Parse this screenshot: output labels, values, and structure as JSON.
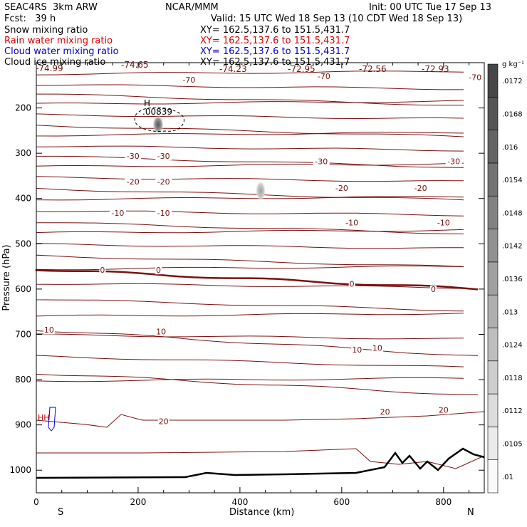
{
  "header": {
    "model": "SEAC4RS  3km ARW",
    "center": "NCAR/MMM",
    "init": "Init: 00 UTC Tue 17 Sep 13",
    "fcst": "Fcst:   39 h",
    "valid": "Valid: 15 UTC Wed 18 Sep 13 (10 CDT Wed 18 Sep 13)"
  },
  "fields": [
    {
      "name": "Snow mixing ratio",
      "xy": "XY= 162.5,137.6 to 151.5,431.7",
      "color": "#000000"
    },
    {
      "name": "Rain water mixing ratio",
      "xy": "XY= 162.5,137.6 to 151.5,431.7",
      "color": "#e00000"
    },
    {
      "name": "Cloud water mixing ratio",
      "xy": "XY= 162.5,137.6 to 151.5,431.7",
      "color": "#0000cc"
    },
    {
      "name": "Cloud ice mixing ratio",
      "xy": "XY= 162.5,137.6 to 151.5,431.7",
      "color": "#000000"
    }
  ],
  "chart_data": {
    "type": "heatmap",
    "title": "",
    "xlabel": "Distance (km)",
    "ylabel": "Pressure (hPa)",
    "xlim": [
      0,
      880
    ],
    "ylim": [
      1050,
      100
    ],
    "xticks": [
      0,
      200,
      400,
      600,
      800
    ],
    "yticks": [
      200,
      300,
      400,
      500,
      600,
      700,
      800,
      900,
      1000
    ],
    "x_end_labels": {
      "left": "S",
      "right": "N"
    },
    "colorbar": {
      "unit": "g kg⁻¹",
      "levels": [
        ".01",
        ".0105",
        ".0112",
        ".0118",
        ".0124",
        ".013",
        ".0136",
        ".0142",
        ".0148",
        ".0154",
        ".016",
        ".0168",
        ".0172"
      ]
    },
    "top_contour_labels": [
      "-74.99",
      "-74.65",
      "-74.23",
      "-72.95",
      "-72.56",
      "-72.93"
    ],
    "isotherm_labels": [
      {
        "text": "-70",
        "x": 300,
        "p": 138
      },
      {
        "text": "-70",
        "x": 565,
        "p": 130
      },
      {
        "text": "-70",
        "x": 862,
        "p": 132
      },
      {
        "text": "-30",
        "x": 190,
        "p": 306
      },
      {
        "text": "-30",
        "x": 250,
        "p": 306
      },
      {
        "text": "-30",
        "x": 560,
        "p": 318
      },
      {
        "text": "-30",
        "x": 820,
        "p": 318
      },
      {
        "text": "-20",
        "x": 190,
        "p": 363
      },
      {
        "text": "-20",
        "x": 250,
        "p": 363
      },
      {
        "text": "-20",
        "x": 600,
        "p": 377
      },
      {
        "text": "-20",
        "x": 755,
        "p": 377
      },
      {
        "text": "-10",
        "x": 160,
        "p": 432
      },
      {
        "text": "-10",
        "x": 250,
        "p": 432
      },
      {
        "text": "-10",
        "x": 620,
        "p": 453
      },
      {
        "text": "-10",
        "x": 800,
        "p": 453
      },
      {
        "text": "0",
        "x": 130,
        "p": 558
      },
      {
        "text": "0",
        "x": 240,
        "p": 558
      },
      {
        "text": "0",
        "x": 620,
        "p": 588
      },
      {
        "text": "0",
        "x": 780,
        "p": 600
      },
      {
        "text": "10",
        "x": 25,
        "p": 690
      },
      {
        "text": "10",
        "x": 245,
        "p": 694
      },
      {
        "text": "10",
        "x": 630,
        "p": 734
      },
      {
        "text": "10",
        "x": 670,
        "p": 730
      },
      {
        "text": "20",
        "x": 250,
        "p": 892
      },
      {
        "text": "20",
        "x": 685,
        "p": 871
      },
      {
        "text": "20",
        "x": 800,
        "p": 867
      }
    ],
    "snow_max": {
      "label": "H",
      "value": ".00839",
      "x": 225,
      "p": 230
    }
  }
}
